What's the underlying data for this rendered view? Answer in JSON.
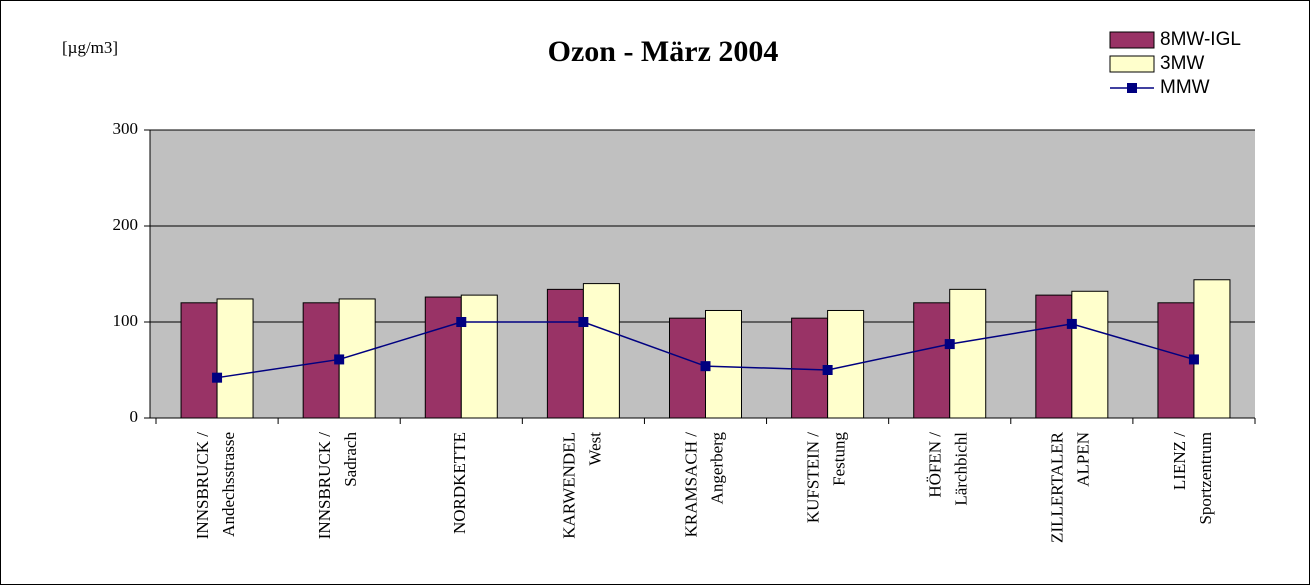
{
  "chart_data": {
    "type": "bar",
    "title": "Ozon - März 2004",
    "unit_label": "[µg/m3]",
    "categories": [
      [
        "INNSBRUCK /",
        "Andechsstrasse"
      ],
      [
        "INNSBRUCK /",
        "Sadrach"
      ],
      [
        "NORDKETTE"
      ],
      [
        "KARWENDEL",
        "West"
      ],
      [
        "KRAMSACH /",
        "Angerberg"
      ],
      [
        "KUFSTEIN /",
        "Festung"
      ],
      [
        "HÖFEN /",
        "Lärchbichl"
      ],
      [
        "ZILLERTALER",
        "ALPEN"
      ],
      [
        "LIENZ /",
        "Sportzentrum"
      ]
    ],
    "series": [
      {
        "name": "8MW-IGL",
        "type": "bar",
        "color": "#993366",
        "values": [
          120,
          120,
          126,
          134,
          104,
          104,
          120,
          128,
          120
        ]
      },
      {
        "name": "3MW",
        "type": "bar",
        "color": "#ffffcc",
        "values": [
          124,
          124,
          128,
          140,
          112,
          112,
          134,
          132,
          144
        ]
      },
      {
        "name": "MMW",
        "type": "line",
        "color": "#000080",
        "values": [
          42,
          61,
          100,
          100,
          54,
          50,
          77,
          98,
          61
        ]
      }
    ],
    "ylim": [
      0,
      300
    ],
    "yticks": [
      0,
      100,
      200,
      300
    ],
    "grid": true,
    "legend": "top-right"
  }
}
